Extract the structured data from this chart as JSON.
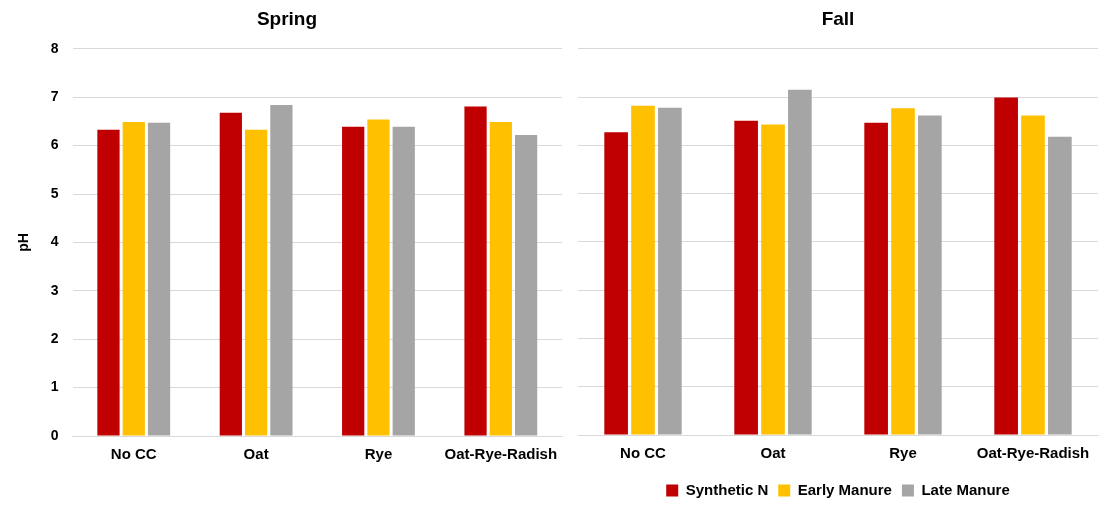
{
  "chart_data": [
    {
      "type": "bar",
      "title": "Spring",
      "ylabel": "pH",
      "categories": [
        "No CC",
        "Oat",
        "Rye",
        "Oat-Rye-Radish"
      ],
      "series": [
        {
          "color": "#c00000",
          "values": [
            6.33,
            6.68,
            6.39,
            6.81
          ]
        },
        {
          "color": "#ffc000",
          "values": [
            6.49,
            6.33,
            6.54,
            6.49
          ]
        },
        {
          "color": "#a5a5a5",
          "values": [
            6.47,
            6.84,
            6.39,
            6.22
          ]
        }
      ],
      "ylim": [
        0,
        8
      ],
      "yticks": [
        0,
        1,
        2,
        3,
        4,
        5,
        6,
        7,
        8
      ],
      "grid": "y",
      "legend": false
    },
    {
      "type": "bar",
      "title": "Fall",
      "categories": [
        "No CC",
        "Oat",
        "Rye",
        "Oat-Rye-Radish"
      ],
      "series": [
        {
          "name": "Synthetic N",
          "color": "#c00000",
          "values": [
            6.27,
            6.51,
            6.47,
            6.99
          ]
        },
        {
          "name": "Early Manure",
          "color": "#ffc000",
          "values": [
            6.82,
            6.43,
            6.77,
            6.62
          ]
        },
        {
          "name": "Late Manure",
          "color": "#a5a5a5",
          "values": [
            6.78,
            7.15,
            6.62,
            6.18
          ]
        }
      ],
      "ylim": [
        0,
        8
      ],
      "yticks": [
        0,
        1,
        2,
        3,
        4,
        5,
        6,
        7,
        8
      ],
      "grid": "y",
      "legend": "bottom",
      "tick_labels": "x"
    }
  ]
}
